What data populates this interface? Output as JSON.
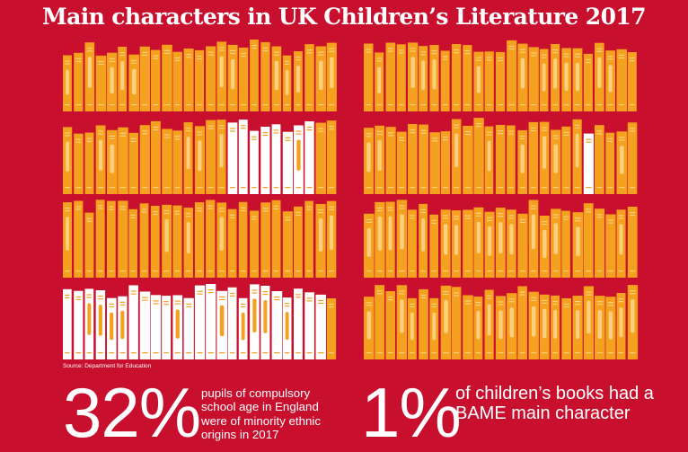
{
  "title": "Main characters in UK Children’s Literature 2017",
  "source": "Source: Department for Education",
  "colors": {
    "background": "#c8102e",
    "book_orange": "#f4a11f",
    "book_orange_stripe": "#fbcf7d",
    "book_white": "#ffffff",
    "book_white_stripe": "#f4a11f"
  },
  "stats": [
    {
      "value": "32%",
      "text": "pupils of compulsory school age in England were of minority ethnic origins in 2017"
    },
    {
      "value": "1%",
      "text": "of children’s books had a BAME main character"
    }
  ],
  "chart_data": [
    {
      "type": "pictogram",
      "title": "pupils of compulsory school age in England were of minority ethnic origins in 2017",
      "total": 100,
      "categories": [
        "minority ethnic origins",
        "other"
      ],
      "values": [
        32,
        68
      ],
      "unit": "%",
      "colors": {
        "minority ethnic origins": "#ffffff",
        "other": "#f4a11f"
      }
    },
    {
      "type": "pictogram",
      "title": "of children’s books had a BAME main character",
      "total": 100,
      "categories": [
        "BAME main character",
        "other"
      ],
      "values": [
        1,
        99
      ],
      "unit": "%",
      "colors": {
        "BAME main character": "#ffffff",
        "other": "#f4a11f"
      }
    }
  ]
}
